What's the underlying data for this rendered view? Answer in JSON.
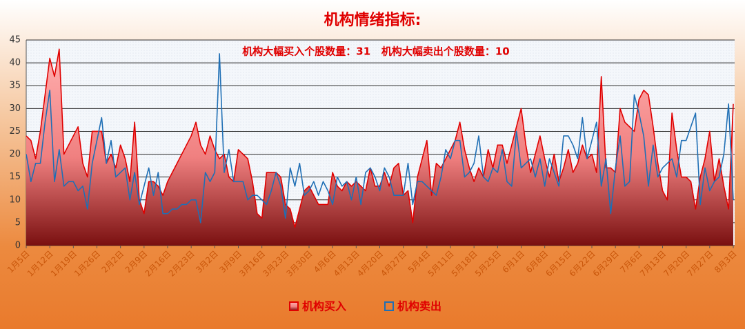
{
  "chart_data": {
    "type": "line-area",
    "title": "机构情绪指标:",
    "annotation": "机构大幅买入个股数量：31   机构大幅卖出个股数量：10",
    "categories": [
      "1月5日",
      null,
      null,
      null,
      null,
      "1月12日",
      null,
      null,
      null,
      null,
      "1月19日",
      null,
      null,
      null,
      null,
      "1月26日",
      null,
      null,
      null,
      null,
      "2月2日",
      null,
      null,
      null,
      null,
      "2月9日",
      null,
      null,
      null,
      null,
      "2月16日",
      null,
      null,
      null,
      null,
      "2月23日",
      null,
      null,
      null,
      null,
      "3月2日",
      null,
      null,
      null,
      null,
      "3月9日",
      null,
      null,
      null,
      null,
      "3月16日",
      null,
      null,
      null,
      null,
      "3月23日",
      null,
      null,
      null,
      null,
      "3月30日",
      null,
      null,
      null,
      null,
      "4月6日",
      null,
      null,
      null,
      null,
      "4月13日",
      null,
      null,
      null,
      null,
      "4月20日",
      null,
      null,
      null,
      null,
      "4月27日",
      null,
      null,
      null,
      null,
      "5月4日",
      null,
      null,
      null,
      null,
      "5月11日",
      null,
      null,
      null,
      null,
      "5月18日",
      null,
      null,
      null,
      null,
      "5月25日",
      null,
      null,
      null,
      null,
      "6月1日",
      null,
      null,
      null,
      null,
      "6月8日",
      null,
      null,
      null,
      null,
      "6月15日",
      null,
      null,
      null,
      null,
      "6月22日",
      null,
      null,
      null,
      null,
      "6月29日",
      null,
      null,
      null,
      null,
      "7月6日",
      null,
      null,
      null,
      null,
      "7月13日",
      null,
      null,
      null,
      null,
      "7月20日",
      null,
      null,
      null,
      null,
      "7月27日",
      null,
      null,
      null,
      null,
      "8月3日"
    ],
    "series": [
      {
        "name": "机构买入",
        "color": "#e00000",
        "fill": "area",
        "values": [
          24,
          23,
          19,
          25,
          33,
          41,
          37,
          43,
          20,
          22,
          24,
          26,
          18,
          15,
          25,
          25,
          25,
          18,
          20,
          17,
          22,
          19,
          14,
          27,
          10,
          7,
          14,
          14,
          13,
          11,
          14,
          16,
          18,
          20,
          22,
          24,
          27,
          22,
          20,
          24,
          21,
          19,
          20,
          15,
          14,
          21,
          20,
          19,
          14,
          7,
          6,
          16,
          16,
          16,
          15,
          9,
          8,
          4,
          8,
          12,
          13,
          11,
          9,
          9,
          9,
          16,
          13,
          12,
          14,
          13,
          14,
          13,
          12,
          17,
          13,
          13,
          16,
          13,
          17,
          18,
          11,
          12,
          5,
          15,
          19,
          23,
          11,
          18,
          17,
          19,
          21,
          23,
          27,
          21,
          17,
          14,
          17,
          15,
          21,
          17,
          22,
          22,
          18,
          22,
          26,
          30,
          22,
          16,
          20,
          24,
          19,
          15,
          20,
          14,
          17,
          21,
          16,
          18,
          22,
          19,
          20,
          16,
          37,
          17,
          17,
          16,
          30,
          27,
          26,
          25,
          32,
          34,
          33,
          26,
          18,
          12,
          10,
          29,
          21,
          15,
          15,
          14,
          8,
          15,
          19,
          25,
          14,
          19,
          13,
          8,
          31
        ]
      },
      {
        "name": "机构卖出",
        "color": "#1f6fb5",
        "fill": "none",
        "values": [
          20,
          14,
          18,
          18,
          27,
          34,
          14,
          21,
          13,
          14,
          14,
          12,
          13,
          8,
          18,
          23,
          28,
          18,
          23,
          15,
          16,
          17,
          10,
          16,
          9,
          13,
          17,
          11,
          16,
          7,
          7,
          8,
          8,
          9,
          9,
          10,
          10,
          5,
          16,
          14,
          16,
          42,
          16,
          21,
          14,
          14,
          14,
          10,
          11,
          11,
          10,
          9,
          12,
          16,
          13,
          6,
          17,
          13,
          18,
          11,
          12,
          14,
          11,
          14,
          12,
          9,
          15,
          13,
          14,
          10,
          15,
          9,
          16,
          17,
          15,
          12,
          17,
          15,
          11,
          11,
          11,
          18,
          9,
          14,
          14,
          13,
          12,
          11,
          15,
          21,
          19,
          23,
          23,
          15,
          16,
          18,
          24,
          15,
          14,
          17,
          16,
          21,
          14,
          13,
          25,
          17,
          18,
          19,
          15,
          19,
          13,
          19,
          16,
          13,
          24,
          24,
          22,
          19,
          28,
          19,
          23,
          27,
          13,
          19,
          7,
          17,
          24,
          13,
          14,
          33,
          29,
          24,
          13,
          22,
          15,
          17,
          18,
          19,
          15,
          23,
          23,
          26,
          29,
          9,
          17,
          12,
          14,
          15,
          20,
          31,
          10
        ]
      }
    ],
    "ylim": [
      0,
      45
    ],
    "yticks": [
      0,
      5,
      10,
      15,
      20,
      25,
      30,
      35,
      40,
      45
    ],
    "grid": true,
    "legend": "bottom"
  }
}
